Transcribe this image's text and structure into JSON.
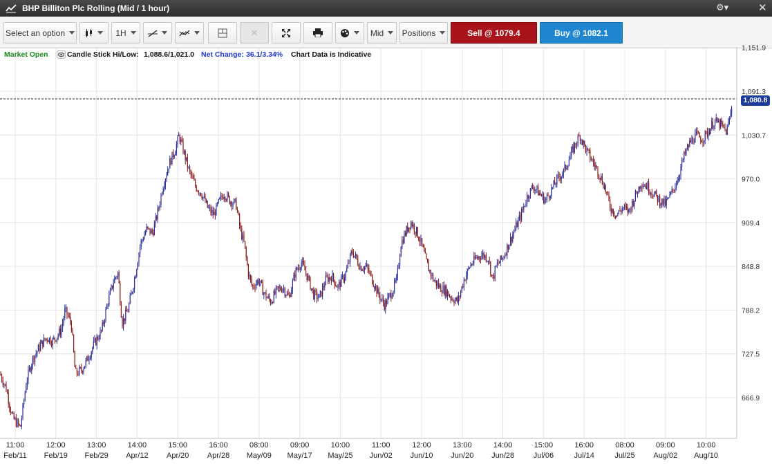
{
  "window": {
    "title": "BHP Billiton Plc Rolling (Mid / 1 hour)",
    "gear_icon": "gear-icon",
    "close_glyph": "✕"
  },
  "toolbar": {
    "select_option": "Select an option",
    "chart_type_icon": "candlestick-icon",
    "interval": "1H",
    "draw_icon": "line-draw-icon",
    "studies_icon": "indicator-icon",
    "layout_icon": "layout-icon",
    "delete_icon": "delete-icon",
    "fullscreen_icon": "fullscreen-icon",
    "print_icon": "print-icon",
    "color_icon": "palette-icon",
    "price_mode": "Mid",
    "positions": "Positions",
    "sell_label": "Sell @ 1079.4",
    "buy_label": "Buy @ 1082.1"
  },
  "info": {
    "market_status": "Market Open",
    "chart_style": "Candle Stick",
    "hilow_label": "Hi/Low:",
    "hilow_value": "1,088.6/1,021.0",
    "net_change_label": "Net Change:",
    "net_change_value": "36.1/3.34%",
    "disclaimer": "Chart Data is Indicative"
  },
  "colors": {
    "market_open": "#1a8a1a",
    "net_change": "#1a35c9",
    "sell": "#a8141a",
    "buy": "#1f86cf",
    "price_tag": "#1a3a9c",
    "candle_up": "#2b2f9a",
    "candle_down": "#8a1a1a"
  },
  "chart_data": {
    "type": "candlestick",
    "current_price": 1080.8,
    "current_price_label": "1,080.8",
    "ylim": [
      605,
      1152
    ],
    "y_ticks": [
      {
        "value": 1151.9,
        "label": "1,151.9"
      },
      {
        "value": 1091.3,
        "label": "1,091.3"
      },
      {
        "value": 1030.7,
        "label": "1,030.7"
      },
      {
        "value": 970.0,
        "label": "970.0"
      },
      {
        "value": 909.4,
        "label": "909.4"
      },
      {
        "value": 848.8,
        "label": "848.8"
      },
      {
        "value": 788.2,
        "label": "788.2"
      },
      {
        "value": 727.5,
        "label": "727.5"
      },
      {
        "value": 666.9,
        "label": "666.9"
      }
    ],
    "x_ticks": [
      {
        "time": "11:00",
        "date": "Feb/11"
      },
      {
        "time": "12:00",
        "date": "Feb/19"
      },
      {
        "time": "13:00",
        "date": "Feb/29"
      },
      {
        "time": "14:00",
        "date": "Apr/12"
      },
      {
        "time": "15:00",
        "date": "Apr/20"
      },
      {
        "time": "16:00",
        "date": "Apr/28"
      },
      {
        "time": "08:00",
        "date": "May/09"
      },
      {
        "time": "09:00",
        "date": "May/17"
      },
      {
        "time": "10:00",
        "date": "May/25"
      },
      {
        "time": "11:00",
        "date": "Jun/02"
      },
      {
        "time": "12:00",
        "date": "Jun/10"
      },
      {
        "time": "13:00",
        "date": "Jun/20"
      },
      {
        "time": "14:00",
        "date": "Jun/28"
      },
      {
        "time": "15:00",
        "date": "Jul/06"
      },
      {
        "time": "16:00",
        "date": "Jul/14"
      },
      {
        "time": "08:00",
        "date": "Jul/25"
      },
      {
        "time": "09:00",
        "date": "Aug/02"
      },
      {
        "time": "10:00",
        "date": "Aug/10"
      }
    ],
    "price_path": [
      [
        0,
        700
      ],
      [
        0.3,
        680
      ],
      [
        0.6,
        640
      ],
      [
        1,
        625
      ],
      [
        1.3,
        690
      ],
      [
        1.6,
        720
      ],
      [
        2,
        740
      ],
      [
        2.3,
        750
      ],
      [
        2.6,
        745
      ],
      [
        3,
        760
      ],
      [
        3.2,
        788
      ],
      [
        3.5,
        770
      ],
      [
        3.7,
        700
      ],
      [
        4,
        705
      ],
      [
        4.3,
        720
      ],
      [
        4.6,
        740
      ],
      [
        5,
        760
      ],
      [
        5.3,
        800
      ],
      [
        5.6,
        830
      ],
      [
        5.8,
        840
      ],
      [
        6,
        770
      ],
      [
        6.3,
        790
      ],
      [
        6.6,
        830
      ],
      [
        6.9,
        880
      ],
      [
        7.2,
        900
      ],
      [
        7.5,
        895
      ],
      [
        7.8,
        930
      ],
      [
        8,
        960
      ],
      [
        8.3,
        990
      ],
      [
        8.6,
        1010
      ],
      [
        8.8,
        1030
      ],
      [
        9,
        1010
      ],
      [
        9.3,
        980
      ],
      [
        9.6,
        960
      ],
      [
        9.9,
        950
      ],
      [
        10.2,
        930
      ],
      [
        10.5,
        920
      ],
      [
        10.8,
        940
      ],
      [
        11,
        950
      ],
      [
        11.3,
        940
      ],
      [
        11.6,
        935
      ],
      [
        11.8,
        900
      ],
      [
        12,
        880
      ],
      [
        12.2,
        840
      ],
      [
        12.4,
        820
      ],
      [
        12.7,
        830
      ],
      [
        13,
        810
      ],
      [
        13.3,
        800
      ],
      [
        13.6,
        815
      ],
      [
        13.9,
        820
      ],
      [
        14.2,
        805
      ],
      [
        14.5,
        840
      ],
      [
        14.8,
        855
      ],
      [
        15.1,
        835
      ],
      [
        15.4,
        810
      ],
      [
        15.7,
        805
      ],
      [
        16,
        830
      ],
      [
        16.3,
        835
      ],
      [
        16.6,
        820
      ],
      [
        17,
        840
      ],
      [
        17.3,
        870
      ],
      [
        17.5,
        860
      ],
      [
        17.7,
        848
      ],
      [
        18,
        848
      ],
      [
        18.3,
        830
      ],
      [
        18.6,
        810
      ],
      [
        18.9,
        795
      ],
      [
        19.2,
        810
      ],
      [
        19.5,
        830
      ],
      [
        19.7,
        880
      ],
      [
        20,
        900
      ],
      [
        20.2,
        910
      ],
      [
        20.5,
        895
      ],
      [
        20.7,
        880
      ],
      [
        21,
        850
      ],
      [
        21.3,
        830
      ],
      [
        21.6,
        820
      ],
      [
        21.9,
        815
      ],
      [
        22.2,
        805
      ],
      [
        22.5,
        800
      ],
      [
        22.8,
        830
      ],
      [
        23.1,
        850
      ],
      [
        23.4,
        860
      ],
      [
        23.7,
        865
      ],
      [
        24,
        860
      ],
      [
        24.2,
        830
      ],
      [
        24.4,
        850
      ],
      [
        24.7,
        860
      ],
      [
        25,
        880
      ],
      [
        25.3,
        900
      ],
      [
        25.6,
        920
      ],
      [
        25.9,
        945
      ],
      [
        26.2,
        960
      ],
      [
        26.5,
        950
      ],
      [
        26.8,
        940
      ],
      [
        27.1,
        955
      ],
      [
        27.4,
        970
      ],
      [
        27.7,
        980
      ],
      [
        28,
        1000
      ],
      [
        28.3,
        1020
      ],
      [
        28.5,
        1030
      ],
      [
        28.8,
        1010
      ],
      [
        29.1,
        995
      ],
      [
        29.4,
        980
      ],
      [
        29.7,
        960
      ],
      [
        30,
        930
      ],
      [
        30.3,
        920
      ],
      [
        30.6,
        930
      ],
      [
        30.9,
        925
      ],
      [
        31.2,
        945
      ],
      [
        31.5,
        965
      ],
      [
        31.8,
        960
      ],
      [
        32.1,
        950
      ],
      [
        32.4,
        940
      ],
      [
        32.7,
        935
      ],
      [
        33,
        950
      ],
      [
        33.3,
        970
      ],
      [
        33.6,
        1000
      ],
      [
        33.9,
        1020
      ],
      [
        34.2,
        1030
      ],
      [
        34.5,
        1025
      ],
      [
        34.8,
        1035
      ],
      [
        35.1,
        1050
      ],
      [
        35.4,
        1045
      ],
      [
        35.7,
        1035
      ],
      [
        35.9,
        1060
      ],
      [
        36,
        1080.8
      ]
    ]
  }
}
